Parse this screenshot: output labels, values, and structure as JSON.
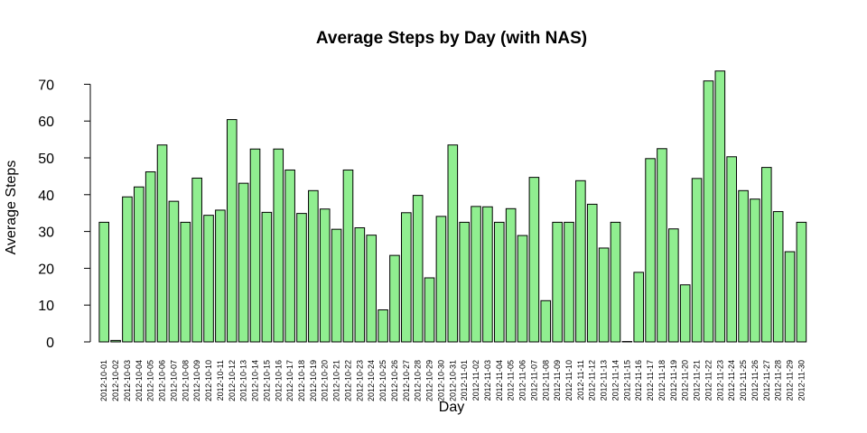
{
  "chart_data": {
    "type": "bar",
    "title": "Average Steps by Day (with NAS)",
    "xlabel": "Day",
    "ylabel": "Average Steps",
    "ylim": [
      0,
      75
    ],
    "yticks": [
      0,
      10,
      20,
      30,
      40,
      50,
      60,
      70
    ],
    "grid": false,
    "bar_color": "#90EE90",
    "bar_edge_color": "#000000",
    "categories": [
      "2012-10-01",
      "2012-10-02",
      "2012-10-03",
      "2012-10-04",
      "2012-10-05",
      "2012-10-06",
      "2012-10-07",
      "2012-10-08",
      "2012-10-09",
      "2012-10-10",
      "2012-10-11",
      "2012-10-12",
      "2012-10-13",
      "2012-10-14",
      "2012-10-15",
      "2012-10-16",
      "2012-10-17",
      "2012-10-18",
      "2012-10-19",
      "2012-10-20",
      "2012-10-21",
      "2012-10-22",
      "2012-10-23",
      "2012-10-24",
      "2012-10-25",
      "2012-10-26",
      "2012-10-27",
      "2012-10-28",
      "2012-10-29",
      "2012-10-30",
      "2012-10-31",
      "2012-11-01",
      "2012-11-02",
      "2012-11-03",
      "2012-11-04",
      "2012-11-05",
      "2012-11-06",
      "2012-11-07",
      "2012-11-08",
      "2012-11-09",
      "2012-11-10",
      "2012-11-11",
      "2012-11-12",
      "2012-11-13",
      "2012-11-14",
      "2012-11-15",
      "2012-11-16",
      "2012-11-17",
      "2012-11-18",
      "2012-11-19",
      "2012-11-20",
      "2012-11-21",
      "2012-11-22",
      "2012-11-23",
      "2012-11-24",
      "2012-11-25",
      "2012-11-26",
      "2012-11-27",
      "2012-11-28",
      "2012-11-29",
      "2012-11-30"
    ],
    "values": [
      32.5,
      0.4,
      39.4,
      42.1,
      46.2,
      53.5,
      38.2,
      32.5,
      44.5,
      34.4,
      35.8,
      60.4,
      43.1,
      52.4,
      35.2,
      52.4,
      46.7,
      34.9,
      41.1,
      36.1,
      30.6,
      46.7,
      31.0,
      29.0,
      8.7,
      23.5,
      35.1,
      39.8,
      17.4,
      34.1,
      53.5,
      32.5,
      36.8,
      36.7,
      32.5,
      36.2,
      28.9,
      44.7,
      11.2,
      32.5,
      32.5,
      43.8,
      37.4,
      25.5,
      32.5,
      0.1,
      18.9,
      49.8,
      52.5,
      30.7,
      15.5,
      44.4,
      70.9,
      73.6,
      50.3,
      41.1,
      38.8,
      47.4,
      35.4,
      24.5,
      32.5
    ]
  }
}
